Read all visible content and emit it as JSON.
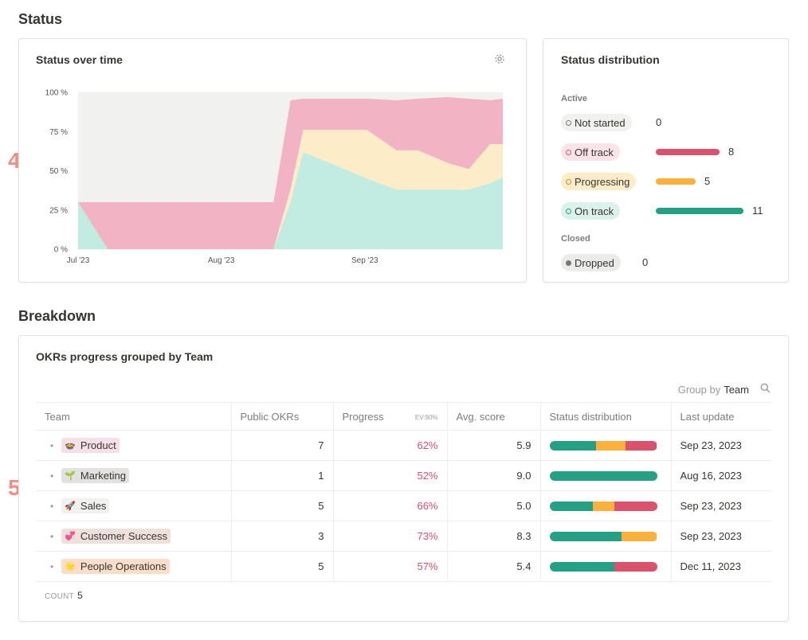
{
  "status_section": {
    "title": "Status"
  },
  "status_over_time": {
    "title": "Status over time",
    "settings_icon": "gear-icon"
  },
  "chart_data": {
    "type": "area",
    "stacked": true,
    "y_ticks": [
      "0 %",
      "25 %",
      "50 %",
      "75 %",
      "100 %"
    ],
    "x_ticks": [
      "Jul '23",
      "Aug '23",
      "Sep '23"
    ],
    "ylim": [
      0,
      100
    ],
    "x": [
      0,
      0.07,
      0.46,
      0.5,
      0.53,
      0.62,
      0.68,
      0.75,
      0.8,
      0.87,
      0.92,
      0.97,
      1.0
    ],
    "series": [
      {
        "key": "on_track",
        "color": "#c2ece1",
        "values": [
          30,
          0,
          0,
          30,
          62,
          52,
          45,
          38,
          38,
          38,
          38,
          42,
          46
        ]
      },
      {
        "key": "progressing",
        "color": "#fdecc8",
        "values": [
          0,
          0,
          0,
          8,
          14,
          24,
          31,
          25,
          25,
          17,
          13,
          25,
          21
        ]
      },
      {
        "key": "off_track",
        "color": "#f2b4c4",
        "values": [
          0,
          30,
          30,
          57,
          20,
          20,
          20,
          32,
          33,
          42,
          45,
          28,
          29
        ]
      },
      {
        "key": "not_started",
        "color": "#f1f1ef",
        "values": [
          70,
          70,
          70,
          5,
          4,
          4,
          4,
          5,
          4,
          3,
          4,
          5,
          4
        ]
      }
    ]
  },
  "status_distribution": {
    "title": "Status distribution",
    "active_label": "Active",
    "closed_label": "Closed",
    "items": [
      {
        "label": "Not started",
        "count": "0",
        "value": 0,
        "bar_color": "#9b9a97",
        "pill_bg": "#f1f1ef",
        "dot_color": "#787774"
      },
      {
        "label": "Off track",
        "count": "8",
        "value": 8,
        "bar_color": "#d9536f",
        "pill_bg": "#fbe4e9",
        "dot_color": "#d9536f"
      },
      {
        "label": "Progressing",
        "count": "5",
        "value": 5,
        "bar_color": "#f8b13d",
        "pill_bg": "#fdecc8",
        "dot_color": "#cb912f"
      },
      {
        "label": "On track",
        "count": "11",
        "value": 11,
        "bar_color": "#26a085",
        "pill_bg": "#dbf2ea",
        "dot_color": "#26a085"
      },
      {
        "label": "Dropped",
        "count": "0",
        "value": 0,
        "bar_color": "#9b9a97",
        "pill_bg": "#ebebea",
        "dot_color": "#787774"
      }
    ],
    "max_value": 11
  },
  "breakdown_section": {
    "title": "Breakdown"
  },
  "okr_table": {
    "title": "OKRs progress grouped by Team",
    "group_by_label": "Group by",
    "group_by_value": "Team",
    "search_icon": "search-icon",
    "columns": [
      "Team",
      "Public OKRs",
      "Progress",
      "Avg. score",
      "Status distribution",
      "Last update"
    ],
    "progress_note": "EV:90%",
    "rows": [
      {
        "emoji": "🍲",
        "team": "Product",
        "tag_bg": "#f5e0e9",
        "public_okrs": "7",
        "progress": "62%",
        "avg_score": "5.9",
        "last_update": "Sep 23, 2023",
        "dist": [
          {
            "c": "#26a085",
            "v": 43
          },
          {
            "c": "#f8b13d",
            "v": 28
          },
          {
            "c": "#d9536f",
            "v": 29
          }
        ]
      },
      {
        "emoji": "🌱",
        "team": "Marketing",
        "tag_bg": "#e3e2e0",
        "public_okrs": "1",
        "progress": "52%",
        "avg_score": "9.0",
        "last_update": "Aug 16, 2023",
        "dist": [
          {
            "c": "#26a085",
            "v": 100
          }
        ]
      },
      {
        "emoji": "🚀",
        "team": "Sales",
        "tag_bg": "#f1f1ef",
        "public_okrs": "5",
        "progress": "66%",
        "avg_score": "5.0",
        "last_update": "Sep 23, 2023",
        "dist": [
          {
            "c": "#26a085",
            "v": 40
          },
          {
            "c": "#f8b13d",
            "v": 20
          },
          {
            "c": "#d9536f",
            "v": 40
          }
        ]
      },
      {
        "emoji": "💞",
        "team": "Customer Success",
        "tag_bg": "#eee0da",
        "public_okrs": "3",
        "progress": "73%",
        "avg_score": "8.3",
        "last_update": "Sep 23, 2023",
        "dist": [
          {
            "c": "#26a085",
            "v": 67
          },
          {
            "c": "#f8b13d",
            "v": 33
          }
        ]
      },
      {
        "emoji": "🌟",
        "team": "People Operations",
        "tag_bg": "#fadec9",
        "public_okrs": "5",
        "progress": "57%",
        "avg_score": "5.4",
        "last_update": "Dec 11, 2023",
        "dist": [
          {
            "c": "#26a085",
            "v": 60
          },
          {
            "c": "#d9536f",
            "v": 40
          }
        ]
      }
    ],
    "count_label": "COUNT",
    "count_value": "5"
  },
  "markers": {
    "first": "4",
    "second": "5"
  }
}
